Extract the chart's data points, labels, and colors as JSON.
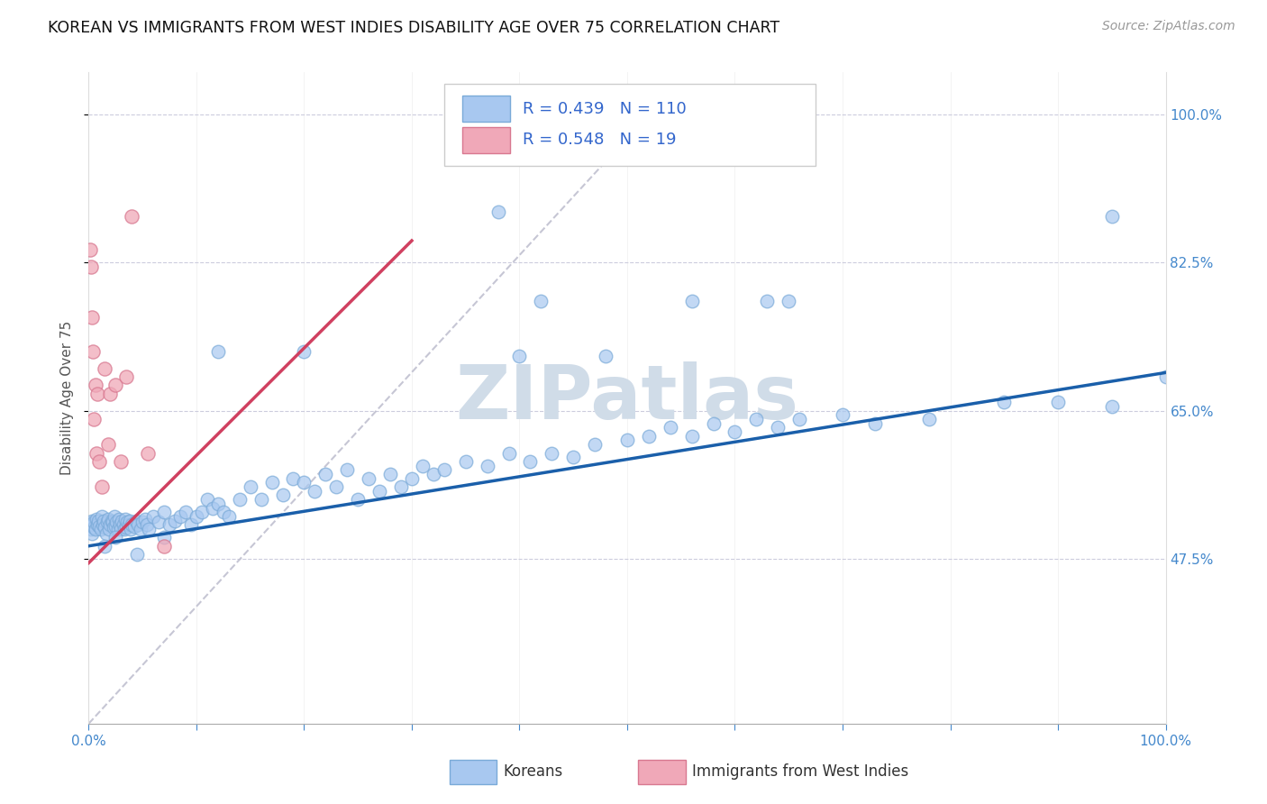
{
  "title": "KOREAN VS IMMIGRANTS FROM WEST INDIES DISABILITY AGE OVER 75 CORRELATION CHART",
  "source": "Source: ZipAtlas.com",
  "ylabel": "Disability Age Over 75",
  "korean_R": 0.439,
  "korean_N": 110,
  "west_indies_R": 0.548,
  "west_indies_N": 19,
  "korean_color": "#a8c8f0",
  "korean_edge_color": "#7aaad8",
  "west_indies_color": "#f0a8b8",
  "west_indies_edge_color": "#d87890",
  "korean_line_color": "#1a5faa",
  "west_indies_line_color": "#d04060",
  "diagonal_color": "#c0c0d0",
  "title_fontsize": 12.5,
  "source_fontsize": 10,
  "axis_label_fontsize": 11,
  "tick_fontsize": 11,
  "legend_fontsize": 13,
  "watermark_text": "ZIPatlas",
  "watermark_color": "#d0dce8",
  "watermark_fontsize": 60,
  "xmin": 0.0,
  "xmax": 1.0,
  "ymin": 0.28,
  "ymax": 1.05,
  "yticks": [
    0.475,
    0.65,
    0.825,
    1.0
  ],
  "ytick_labels": [
    "47.5%",
    "65.0%",
    "82.5%",
    "100.0%"
  ],
  "xtick_labels": [
    "0.0%",
    "",
    "",
    "",
    "",
    "",
    "",
    "",
    "",
    "",
    "100.0%"
  ]
}
